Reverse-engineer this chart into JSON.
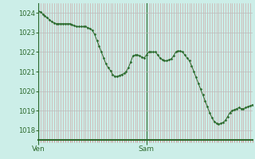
{
  "bg_color": "#cceee8",
  "line_color": "#2d6a2d",
  "marker_color": "#2d6a2d",
  "tick_color_minor": "#cc8888",
  "ylabel_color": "#2d6a2d",
  "xlabel_color": "#2d6a2d",
  "spine_color": "#2d6a2d",
  "ylim": [
    1017.5,
    1024.5
  ],
  "yticks": [
    1018,
    1019,
    1020,
    1021,
    1022,
    1023,
    1024
  ],
  "n_points": 96,
  "sam_x": 48,
  "y_values": [
    1024.1,
    1024.05,
    1023.95,
    1023.85,
    1023.75,
    1023.65,
    1023.55,
    1023.5,
    1023.45,
    1023.45,
    1023.45,
    1023.45,
    1023.45,
    1023.45,
    1023.45,
    1023.4,
    1023.35,
    1023.3,
    1023.3,
    1023.3,
    1023.3,
    1023.3,
    1023.25,
    1023.2,
    1023.1,
    1022.9,
    1022.6,
    1022.3,
    1022.0,
    1021.7,
    1021.4,
    1021.2,
    1021.05,
    1020.85,
    1020.75,
    1020.75,
    1020.8,
    1020.85,
    1020.9,
    1021.0,
    1021.2,
    1021.5,
    1021.8,
    1021.85,
    1021.85,
    1021.8,
    1021.75,
    1021.7,
    1021.85,
    1022.0,
    1022.0,
    1022.0,
    1022.0,
    1021.85,
    1021.7,
    1021.6,
    1021.55,
    1021.55,
    1021.6,
    1021.65,
    1021.8,
    1022.0,
    1022.05,
    1022.05,
    1022.0,
    1021.85,
    1021.7,
    1021.55,
    1021.3,
    1021.0,
    1020.7,
    1020.4,
    1020.1,
    1019.8,
    1019.5,
    1019.2,
    1018.9,
    1018.65,
    1018.45,
    1018.35,
    1018.3,
    1018.35,
    1018.4,
    1018.5,
    1018.7,
    1018.9,
    1019.0,
    1019.05,
    1019.1,
    1019.15,
    1019.1,
    1019.1,
    1019.15,
    1019.2,
    1019.25,
    1019.3
  ],
  "xtick_labels": [
    "Ven",
    "Sam"
  ],
  "xtick_positions": [
    0,
    48
  ],
  "figsize": [
    3.2,
    2.0
  ],
  "dpi": 100
}
